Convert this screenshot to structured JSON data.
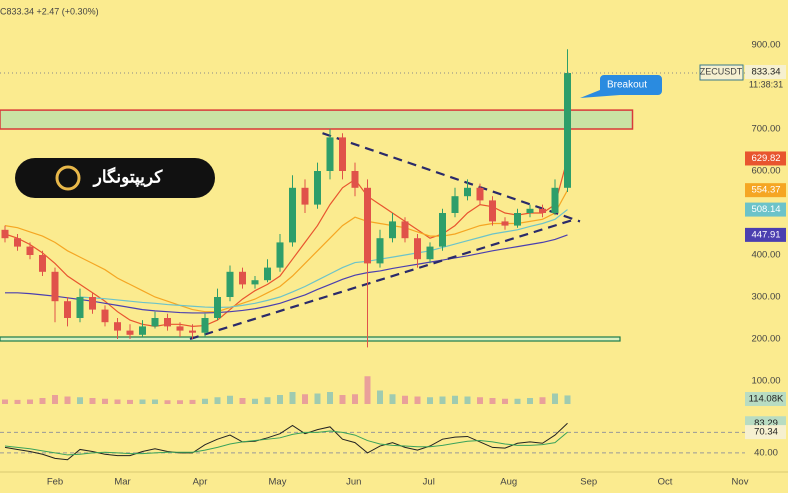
{
  "chart_data": [
    {
      "type": "candlestick",
      "title": "C833.34 +2.47 (+0.30%)",
      "symbol": "ZECUSDT",
      "time": "11:38:31",
      "logo": "کریپتونگار",
      "callout": "Breakout",
      "open": [
        460,
        440,
        420,
        400,
        360,
        290,
        250,
        300,
        270,
        240,
        220,
        210,
        230,
        250,
        230,
        220,
        215,
        250,
        300,
        360,
        330,
        340,
        370,
        430,
        560,
        520,
        600,
        680,
        600,
        560,
        380,
        440,
        480,
        440,
        390,
        420,
        500,
        540,
        560,
        530,
        480,
        470,
        500,
        510,
        500,
        560
      ],
      "high": [
        470,
        450,
        430,
        410,
        370,
        300,
        320,
        310,
        280,
        250,
        235,
        245,
        265,
        260,
        240,
        235,
        260,
        320,
        375,
        370,
        350,
        390,
        450,
        590,
        580,
        620,
        700,
        690,
        620,
        580,
        460,
        500,
        490,
        450,
        430,
        510,
        560,
        580,
        570,
        540,
        490,
        510,
        520,
        520,
        580,
        890
      ],
      "low": [
        430,
        410,
        390,
        350,
        240,
        230,
        240,
        260,
        230,
        200,
        200,
        205,
        225,
        220,
        205,
        200,
        205,
        245,
        290,
        320,
        320,
        335,
        360,
        420,
        500,
        510,
        580,
        580,
        540,
        180,
        370,
        430,
        430,
        370,
        380,
        410,
        490,
        530,
        520,
        470,
        460,
        465,
        490,
        490,
        495,
        550
      ],
      "close": [
        440,
        420,
        400,
        360,
        290,
        250,
        300,
        270,
        240,
        220,
        210,
        230,
        250,
        230,
        220,
        215,
        250,
        300,
        360,
        330,
        340,
        370,
        430,
        560,
        520,
        600,
        680,
        600,
        560,
        380,
        440,
        480,
        440,
        390,
        420,
        500,
        540,
        560,
        530,
        480,
        470,
        500,
        510,
        500,
        560,
        833.34
      ],
      "up_color": "#2e9e6a",
      "down_color": "#e0524a",
      "series": [
        {
          "color": "#e8552f",
          "values": [
            450,
            440,
            425,
            405,
            380,
            350,
            330,
            310,
            290,
            265,
            245,
            235,
            230,
            235,
            235,
            230,
            232,
            245,
            270,
            295,
            315,
            330,
            350,
            390,
            430,
            470,
            520,
            560,
            580,
            540,
            520,
            500,
            480,
            460,
            440,
            450,
            470,
            500,
            520,
            515,
            500,
            495,
            500,
            500,
            520,
            629.82
          ]
        },
        {
          "color": "#f5a623",
          "values": [
            470,
            465,
            455,
            445,
            430,
            410,
            395,
            380,
            365,
            345,
            330,
            315,
            300,
            290,
            280,
            270,
            265,
            265,
            275,
            285,
            295,
            310,
            325,
            350,
            380,
            410,
            440,
            470,
            490,
            480,
            475,
            470,
            465,
            455,
            445,
            445,
            450,
            460,
            470,
            475,
            475,
            475,
            480,
            485,
            500,
            554.37
          ]
        },
        {
          "color": "#6cc3c9",
          "values": [
            null,
            null,
            null,
            null,
            null,
            null,
            300,
            298,
            296,
            293,
            290,
            287,
            285,
            282,
            280,
            278,
            276,
            275,
            276,
            280,
            285,
            292,
            300,
            312,
            325,
            340,
            355,
            370,
            382,
            385,
            390,
            395,
            400,
            405,
            410,
            418,
            426,
            434,
            442,
            450,
            455,
            460,
            468,
            475,
            485,
            508.14
          ]
        },
        {
          "color": "#4b3fb0",
          "values": [
            310,
            310,
            308,
            305,
            302,
            298,
            294,
            290,
            285,
            280,
            275,
            270,
            267,
            265,
            263,
            262,
            262,
            263,
            265,
            268,
            272,
            278,
            285,
            295,
            305,
            318,
            330,
            342,
            352,
            358,
            362,
            368,
            373,
            378,
            383,
            388,
            393,
            398,
            404,
            410,
            415,
            420,
            425,
            430,
            437,
            447.91
          ]
        }
      ],
      "xlim": [
        -0.4,
        62.64
      ],
      "xticks": [
        {
          "value": 4,
          "label": "Feb"
        },
        {
          "value": 9.4,
          "label": "Mar"
        },
        {
          "value": 15.6,
          "label": "Apr"
        },
        {
          "value": 21.8,
          "label": "May"
        },
        {
          "value": 27.9,
          "label": "Jun"
        },
        {
          "value": 33.9,
          "label": "Jul"
        },
        {
          "value": 40.3,
          "label": "Aug"
        },
        {
          "value": 46.7,
          "label": "Sep"
        },
        {
          "value": 52.8,
          "label": "Oct"
        },
        {
          "value": 58.8,
          "label": "Nov"
        }
      ],
      "ylim": [
        50,
        1000
      ],
      "yticks": [
        {
          "value": 900,
          "label": "900.00"
        },
        {
          "value": 700,
          "label": "700.00"
        },
        {
          "value": 600,
          "label": "600.00"
        },
        {
          "value": 500,
          "label": "500.00"
        },
        {
          "value": 400,
          "label": "400.00"
        },
        {
          "value": 300,
          "label": "300.00"
        },
        {
          "value": 200,
          "label": "200.00"
        },
        {
          "value": 100,
          "label": "100.00"
        }
      ],
      "zone": {
        "x": [
          -0.4,
          50.2
        ],
        "y": [
          700,
          745
        ]
      },
      "support": {
        "x": [
          -0.4,
          49.2
        ],
        "y": 200
      },
      "trendlines": [
        {
          "x": [
            25.4,
            46
          ],
          "y": [
            690,
            480
          ]
        },
        {
          "x": [
            14.8,
            45.6
          ],
          "y": [
            200,
            485
          ]
        }
      ]
    },
    {
      "type": "bar",
      "color_up": "#9fcbb0",
      "color_down": "#e9a09a",
      "values": [
        60,
        55,
        60,
        80,
        120,
        100,
        90,
        80,
        70,
        60,
        55,
        60,
        60,
        50,
        50,
        55,
        70,
        90,
        110,
        80,
        70,
        90,
        120,
        160,
        130,
        140,
        160,
        120,
        130,
        370,
        180,
        130,
        110,
        100,
        90,
        100,
        110,
        100,
        90,
        80,
        70,
        70,
        80,
        90,
        140,
        114.08
      ],
      "value_labels": [
        null,
        null,
        null,
        null,
        null,
        null,
        null,
        null,
        null,
        null,
        null,
        null,
        null,
        null,
        null,
        null,
        null,
        null,
        null,
        null,
        null,
        null,
        null,
        null,
        null,
        null,
        null,
        null,
        null,
        null,
        null,
        null,
        null,
        null,
        null,
        null,
        null,
        null,
        null,
        null,
        null,
        null,
        null,
        null,
        null,
        "114.08K"
      ],
      "ylim": [
        0,
        400
      ]
    },
    {
      "type": "line",
      "series": [
        {
          "color": "#222222",
          "values": [
            48,
            45,
            42,
            38,
            32,
            30,
            45,
            42,
            38,
            36,
            36,
            42,
            46,
            42,
            40,
            40,
            52,
            60,
            66,
            56,
            57,
            62,
            68,
            80,
            68,
            74,
            78,
            60,
            55,
            40,
            50,
            55,
            48,
            44,
            50,
            60,
            63,
            64,
            56,
            48,
            47,
            54,
            56,
            54,
            66,
            83.29
          ]
        },
        {
          "color": "#3aa25a",
          "values": [
            50,
            48,
            46,
            43,
            40,
            37,
            38,
            40,
            41,
            40,
            39,
            39,
            40,
            41,
            41,
            41,
            44,
            48,
            53,
            56,
            58,
            60,
            62,
            67,
            70,
            70,
            72,
            70,
            66,
            58,
            53,
            51,
            50,
            49,
            49,
            51,
            54,
            57,
            58,
            56,
            53,
            51,
            51,
            52,
            55,
            70.34
          ]
        }
      ],
      "ylim": [
        15,
        107
      ],
      "yticks": [
        {
          "value": 40,
          "label": "40.00"
        }
      ],
      "levels": [
        70,
        40
      ]
    }
  ]
}
